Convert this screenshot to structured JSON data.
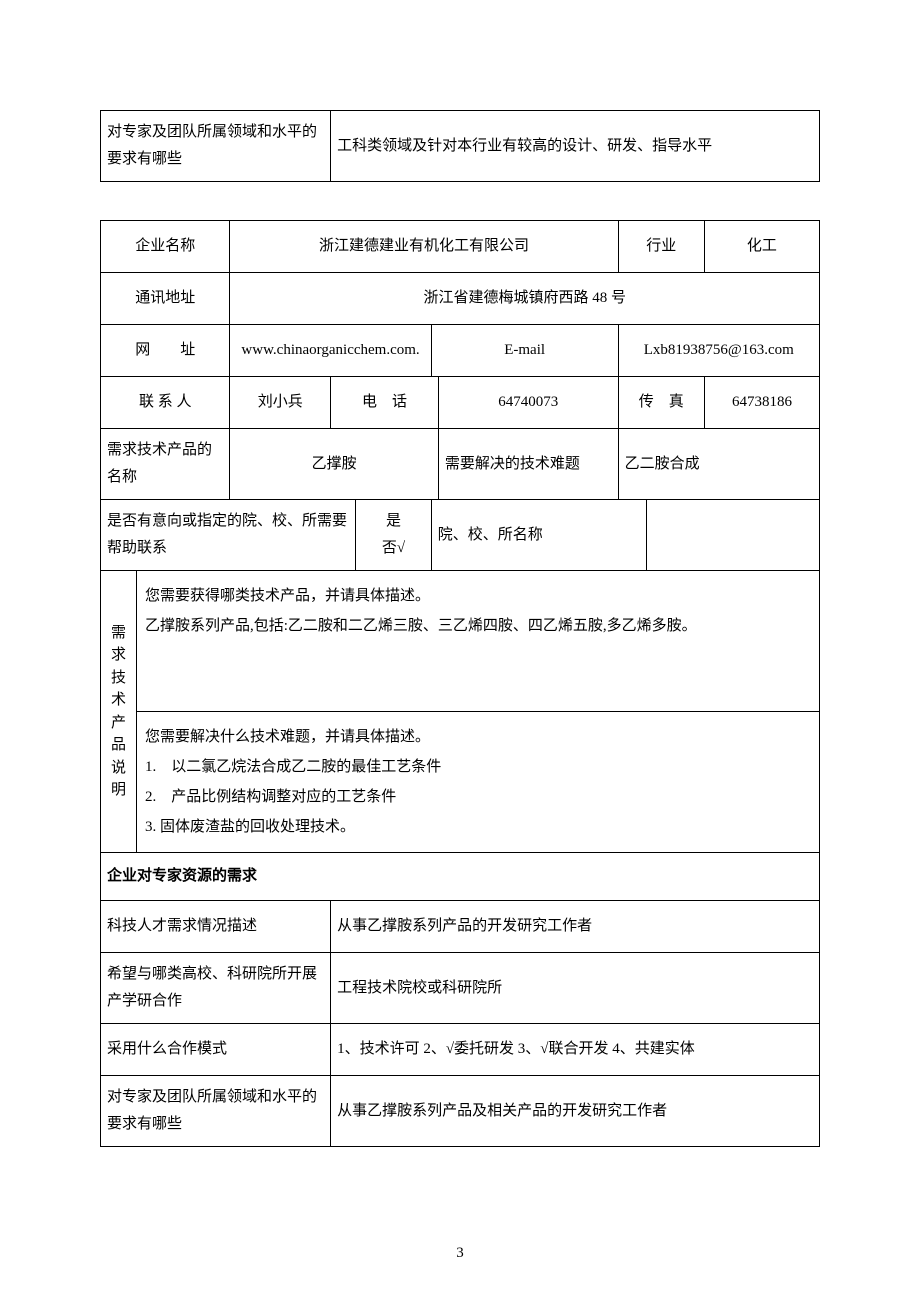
{
  "top_table": {
    "label": "对专家及团队所属领域和水平的要求有哪些",
    "value": "工科类领域及针对本行业有较高的设计、研发、指导水平"
  },
  "main_table": {
    "row1": {
      "company_label": "企业名称",
      "company_value": "浙江建德建业有机化工有限公司",
      "industry_label": "行业",
      "industry_value": "化工"
    },
    "row2": {
      "address_label": "通讯地址",
      "address_value": "浙江省建德梅城镇府西路 48 号"
    },
    "row3": {
      "url_label": "网　　址",
      "url_value": "www.chinaorganicchem.com.",
      "email_label": "E-mail",
      "email_value": "Lxb81938756@163.com"
    },
    "row4": {
      "contact_label": "联 系 人",
      "contact_value": "刘小兵",
      "phone_label": "电　话",
      "phone_value": "64740073",
      "fax_label": "传　真",
      "fax_value": "64738186"
    },
    "row5": {
      "product_label": "需求技术产品的名称",
      "product_value": "乙撑胺",
      "difficulty_label": "需要解决的技术难题",
      "difficulty_value": "乙二胺合成"
    },
    "row6": {
      "intent_label": "是否有意向或指定的院、校、所需要帮助联系",
      "yesno_line1": "是",
      "yesno_line2": "否√",
      "school_label": "院、校、所名称",
      "school_value": ""
    },
    "row7": {
      "vlabel_chars": [
        "需",
        "求",
        "技",
        "术",
        "产",
        "品",
        "说",
        "明"
      ],
      "block1_line1": "您需要获得哪类技术产品，并请具体描述。",
      "block1_line2": "乙撑胺系列产品,包括:乙二胺和二乙烯三胺、三乙烯四胺、四乙烯五胺,多乙烯多胺。",
      "block2_line1": "您需要解决什么技术难题，并请具体描述。",
      "block2_line2": "1.　以二氯乙烷法合成乙二胺的最佳工艺条件",
      "block2_line3": "2.　产品比例结构调整对应的工艺条件",
      "block2_line4": "3. 固体废渣盐的回收处理技术。"
    },
    "row8": {
      "header": "企业对专家资源的需求"
    },
    "row9": {
      "label": "科技人才需求情况描述",
      "value": "从事乙撑胺系列产品的开发研究工作者"
    },
    "row10": {
      "label": "希望与哪类高校、科研院所开展产学研合作",
      "value": "工程技术院校或科研院所"
    },
    "row11": {
      "label": "采用什么合作模式",
      "value": "1、技术许可 2、√委托研发 3、√联合开发 4、共建实体"
    },
    "row12": {
      "label": "对专家及团队所属领域和水平的要求有哪些",
      "value": "从事乙撑胺系列产品及相关产品的开发研究工作者"
    }
  },
  "page_number": "3"
}
